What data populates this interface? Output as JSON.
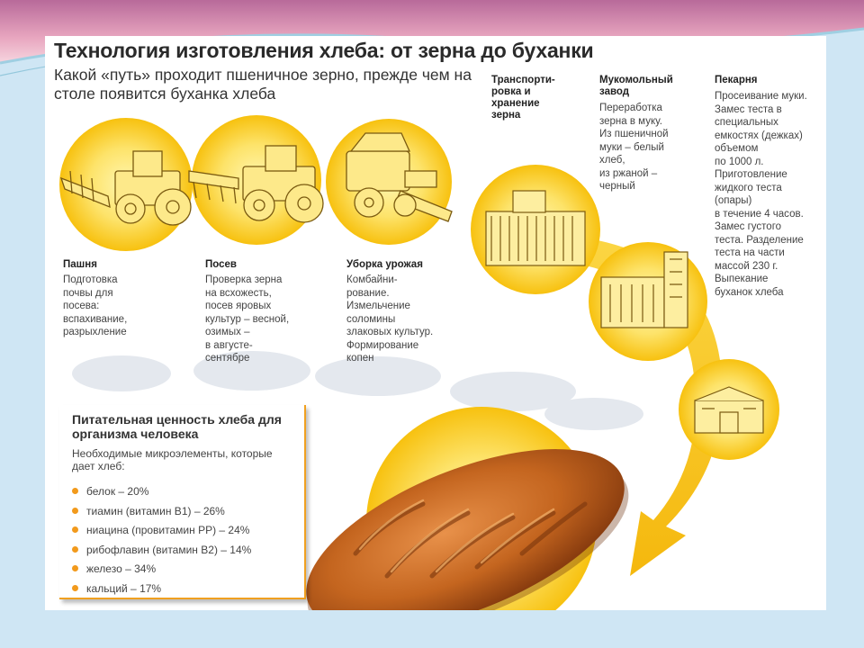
{
  "colors": {
    "accent": "#f5b800",
    "accent_light": "#fde070",
    "arrow": "#f8c200",
    "bullet": "#f29a1c"
  },
  "title": "Технология изготовления хлеба: от зерна до буханки",
  "subtitle": "Какой «путь» проходит пшеничное зерно, прежде чем на столе появится буханка хлеба",
  "steps": [
    {
      "head": "Пашня",
      "icon": "tractor-plough-icon",
      "lines": [
        "Подготовка",
        "почвы для",
        "посева:",
        "вспахивание,",
        "разрыхление"
      ]
    },
    {
      "head": "Посев",
      "icon": "tractor-seeder-icon",
      "lines": [
        "Проверка зерна",
        "на всхожесть,",
        "посев яровых",
        "культур – весной,",
        "озимых –",
        "в августе-",
        "сентябре"
      ]
    },
    {
      "head": "Уборка урожая",
      "icon": "combine-harvester-icon",
      "lines": [
        "Комбайни-",
        "рование.",
        "Измельчение",
        "соломины",
        "злаковых культур.",
        "Формирование",
        "копен"
      ]
    },
    {
      "head_lines": [
        "Транспорти-",
        "ровка и",
        "хранение",
        "зерна"
      ],
      "icon": "grain-elevator-icon"
    },
    {
      "head_lines": [
        "Мукомольный",
        "завод"
      ],
      "icon": "flour-mill-icon",
      "lines": [
        "Переработка",
        "зерна в муку.",
        "Из пшеничной",
        "муки – белый",
        "хлеб,",
        "из ржаной –",
        "черный"
      ]
    },
    {
      "head": "Пекарня",
      "icon": "bakery-icon",
      "lines": [
        "Просеивание муки.",
        "Замес теста в",
        "специальных",
        "емкостях (дежках)",
        "объемом",
        "по 1000 л.",
        "Приготовление",
        "жидкого теста",
        "(опары)",
        "в течение 4 часов.",
        "Замес густого",
        "теста. Разделение",
        "теста на части",
        "массой 230 г.",
        "Выпекание",
        "буханок хлеба"
      ]
    }
  ],
  "nutrition": {
    "title": "Питательная ценность хлеба для организма человека",
    "intro": "Необходимые микроэлементы, которые дает хлеб:",
    "items": [
      "белок – 20%",
      "тиамин (витамин B1) – 26%",
      "ниацина (провитамин PP) – 24%",
      "рибофлавин (витамин B2) – 14%",
      "железо – 34%",
      "кальций – 17%"
    ]
  },
  "bread_icon": "bread-loaf-icon"
}
